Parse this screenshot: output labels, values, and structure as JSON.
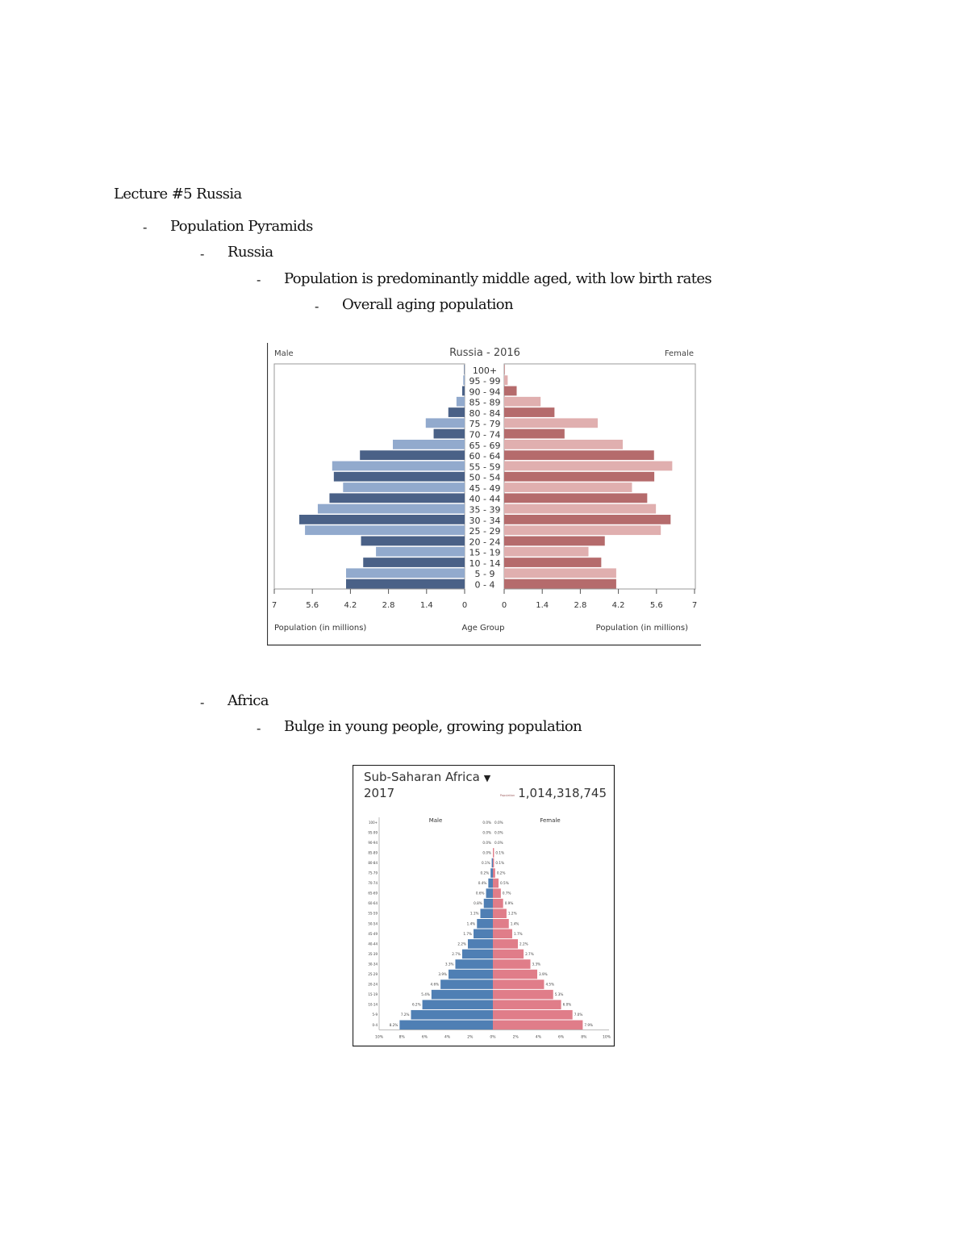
{
  "notes": {
    "title": "Lecture #5 Russia",
    "bullets": [
      {
        "marker": "-",
        "text": "Population Pyramids"
      },
      {
        "marker": "-",
        "text": "Russia"
      },
      {
        "marker": "-",
        "text": "Population is predominantly middle aged, with low birth rates"
      },
      {
        "marker": "-",
        "text": "Overall aging population"
      },
      {
        "marker": "-",
        "text": "Africa"
      },
      {
        "marker": "-",
        "text": "Bulge in young people, growing population"
      }
    ]
  },
  "chart_data": [
    {
      "type": "bar",
      "orientation": "horizontal-pyramid",
      "title": "Russia - 2016",
      "left_label": "Male",
      "right_label": "Female",
      "xlabel_left": "Population (in millions)",
      "xlabel_center": "Age Group",
      "xlabel_right": "Population (in millions)",
      "xlim": [
        0,
        7
      ],
      "ticks": [
        "7",
        "5.6",
        "4.2",
        "2.8",
        "1.4",
        "0"
      ],
      "ticks_right": [
        "0",
        "1.4",
        "2.8",
        "4.2",
        "5.6",
        "7"
      ],
      "categories": [
        "100+",
        "95 - 99",
        "90 - 94",
        "85 - 89",
        "80 - 84",
        "75 - 79",
        "70 - 74",
        "65 - 69",
        "60 - 64",
        "55 - 59",
        "50 - 54",
        "45 - 49",
        "40 - 44",
        "35 - 39",
        "30 - 34",
        "25 - 29",
        "20 - 24",
        "15 - 19",
        "10 - 14",
        "5 - 9",
        "0 - 4"
      ],
      "series": [
        {
          "name": "Male",
          "values": [
            0.02,
            0.05,
            0.09,
            0.3,
            0.6,
            1.43,
            1.14,
            2.64,
            3.85,
            4.87,
            4.81,
            4.47,
            4.97,
            5.4,
            6.08,
            5.87,
            3.81,
            3.26,
            3.73,
            4.36,
            4.36
          ],
          "colors": [
            "#4a6187",
            "#92aacd"
          ]
        },
        {
          "name": "Female",
          "values": [
            0.02,
            0.13,
            0.46,
            1.34,
            1.85,
            3.44,
            2.22,
            4.36,
            5.51,
            6.18,
            5.52,
            4.7,
            5.26,
            5.58,
            6.12,
            5.76,
            3.7,
            3.1,
            3.57,
            4.12,
            4.12
          ],
          "colors": [
            "#b56b6c",
            "#e0afaf"
          ]
        }
      ]
    },
    {
      "type": "bar",
      "orientation": "horizontal-pyramid",
      "title": "Sub-Saharan Africa",
      "dropdown_icon": "triangle-down",
      "year": "2017",
      "population_label": "Population",
      "population": "1,014,318,745",
      "left_label": "Male",
      "right_label": "Female",
      "xlim": [
        0,
        10
      ],
      "ticks": [
        "10%",
        "8%",
        "6%",
        "4%",
        "2%",
        "0%",
        "2%",
        "4%",
        "6%",
        "8%",
        "10%"
      ],
      "categories": [
        "100+",
        "95-99",
        "90-94",
        "85-89",
        "80-84",
        "75-79",
        "70-74",
        "65-69",
        "60-64",
        "55-59",
        "50-54",
        "45-49",
        "40-44",
        "35-39",
        "30-34",
        "25-29",
        "20-24",
        "15-19",
        "10-14",
        "5-9",
        "0-4"
      ],
      "series": [
        {
          "name": "Male",
          "values": [
            0.0,
            0.0,
            0.0,
            0.0,
            0.1,
            0.2,
            0.4,
            0.6,
            0.8,
            1.1,
            1.4,
            1.7,
            2.2,
            2.7,
            3.3,
            3.9,
            4.6,
            5.4,
            6.2,
            7.2,
            8.2
          ],
          "color": "#4f7fb4"
        },
        {
          "name": "Female",
          "values": [
            0.0,
            0.0,
            0.0,
            0.1,
            0.1,
            0.2,
            0.5,
            0.7,
            0.9,
            1.2,
            1.4,
            1.7,
            2.2,
            2.7,
            3.3,
            3.9,
            4.5,
            5.3,
            6.0,
            7.0,
            7.9
          ],
          "color": "#e07d89"
        }
      ]
    }
  ]
}
